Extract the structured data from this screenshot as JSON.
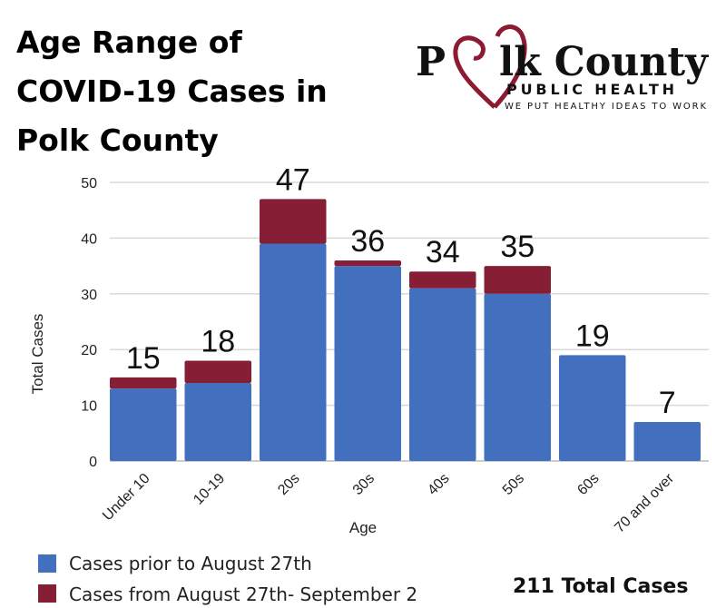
{
  "title_lines": [
    "Age Range of",
    "COVID-19 Cases in",
    "Polk County"
  ],
  "logo": {
    "name": "Polk County",
    "sub": "PUBLIC HEALTH",
    "tagline": "WE PUT HEALTHY IDEAS TO WORK",
    "heart_color": "#8b1a32"
  },
  "total_label": "211 Total Cases",
  "chart_data": {
    "type": "bar",
    "stacked": true,
    "title": "Age Range of COVID-19 Cases in Polk County",
    "xlabel": "Age",
    "ylabel": "Total Cases",
    "ylim": [
      0,
      50
    ],
    "yticks": [
      0,
      10,
      20,
      30,
      40,
      50
    ],
    "grid": true,
    "legend_position": "bottom-left",
    "categories": [
      "Under 10",
      "10-19",
      "20s",
      "30s",
      "40s",
      "50s",
      "60s",
      "70 and over"
    ],
    "series": [
      {
        "name": "Cases prior to August 27th",
        "color": "#4370be",
        "values": [
          13,
          14,
          39,
          35,
          31,
          30,
          19,
          7
        ]
      },
      {
        "name": "Cases from August 27th- September 2",
        "color": "#861e36",
        "values": [
          2,
          4,
          8,
          1,
          3,
          5,
          0,
          0
        ]
      }
    ],
    "totals": [
      15,
      18,
      47,
      36,
      34,
      35,
      19,
      7
    ]
  }
}
